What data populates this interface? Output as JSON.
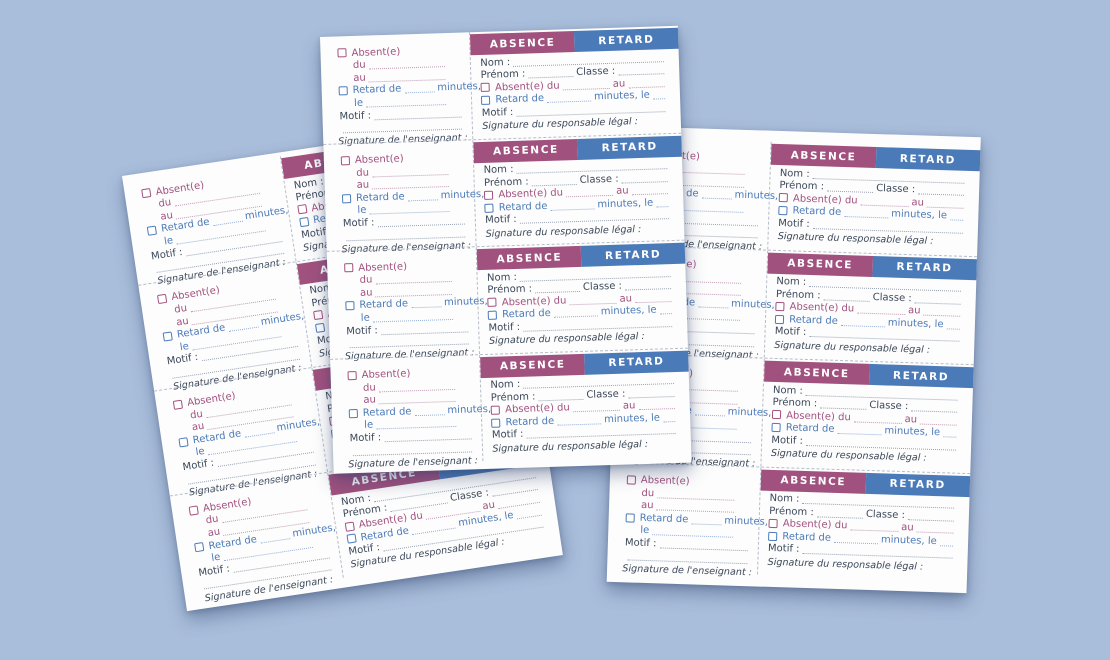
{
  "background_color": "#a9bedb",
  "paper_color": "#fdfdfd",
  "colors": {
    "absence_purple": "#a1517e",
    "retard_blue": "#4b7ab8",
    "ink": "#3c4859"
  },
  "sheet_count": 3,
  "tickets_per_sheet": 4,
  "ticket": {
    "header": {
      "absence": "ABSENCE",
      "retard": "RETARD"
    },
    "stub": {
      "absent_checkbox_label": "Absent(e)",
      "du_label": "du",
      "au_label": "au",
      "retard_checkbox_label": "Retard de",
      "minutes_suffix": "minutes,",
      "le_label": "le",
      "motif_label": "Motif :",
      "signature_label": "Signature de l'enseignant :"
    },
    "slip": {
      "nom_label": "Nom :",
      "prenom_label": "Prénom :",
      "classe_label": "Classe :",
      "absent_checkbox_label": "Absent(e) du",
      "au_label": "au",
      "retard_checkbox_label": "Retard de",
      "minutes_le_label": "minutes, le",
      "motif_label": "Motif :",
      "signature_label": "Signature du responsable légal :"
    }
  }
}
